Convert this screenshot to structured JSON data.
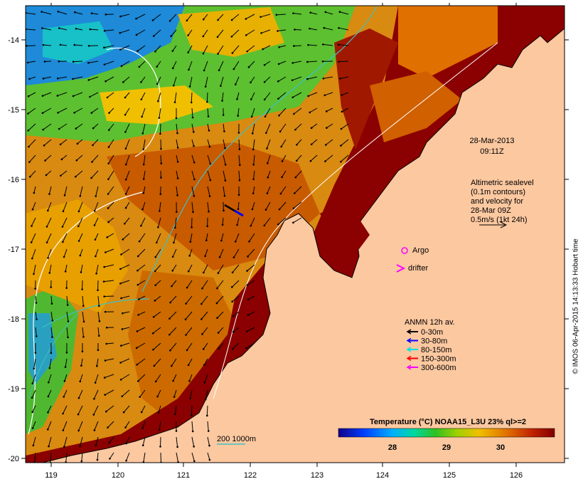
{
  "map": {
    "x_ticks": [
      "119",
      "120",
      "121",
      "122",
      "123",
      "124",
      "125",
      "126"
    ],
    "y_ticks": [
      "-14",
      "-15",
      "-16",
      "-17",
      "-18",
      "-19",
      "-20"
    ],
    "lon_range": [
      118.6,
      126.7
    ],
    "lat_range": [
      -13.6,
      -20.1
    ],
    "colors": {
      "land": "#fcc8a0",
      "hot": "#8b0000",
      "warm": "#cc6a00",
      "mid": "#e8a400",
      "cool": "#4ab820",
      "cold": "#1a70d0"
    }
  },
  "annotations": {
    "date": "28-Mar-2013",
    "time": "09:11Z",
    "altimetry_line1": "Altimetric sealevel",
    "altimetry_line2": "(0.1m contours)",
    "altimetry_line3": "and velocity for",
    "altimetry_line4": "28-Mar 09Z",
    "altimetry_line5": "0.5m/s (1kt 24h)"
  },
  "legend_markers": {
    "argo": "Argo",
    "drifter": "drifter"
  },
  "anmn_legend": {
    "title": "ANMN 12h av.",
    "items": [
      {
        "label": "0-30m",
        "color": "#000000"
      },
      {
        "label": "30-80m",
        "color": "#0000ff"
      },
      {
        "label": "80-150m",
        "color": "#00e0e0"
      },
      {
        "label": "150-300m",
        "color": "#ff0000"
      },
      {
        "label": "300-600m",
        "color": "#ff00ff"
      }
    ]
  },
  "isobath": {
    "label": "200  1000m",
    "color": "#40c0c0"
  },
  "colorbar": {
    "title": "Temperature (°C) NOAA15_L3U 23% ql>=2",
    "ticks": [
      "28",
      "29",
      "30"
    ],
    "range": [
      27,
      31
    ]
  },
  "credit": "© IMOS 06-Apr-2015 14:13:33 Hobart time"
}
